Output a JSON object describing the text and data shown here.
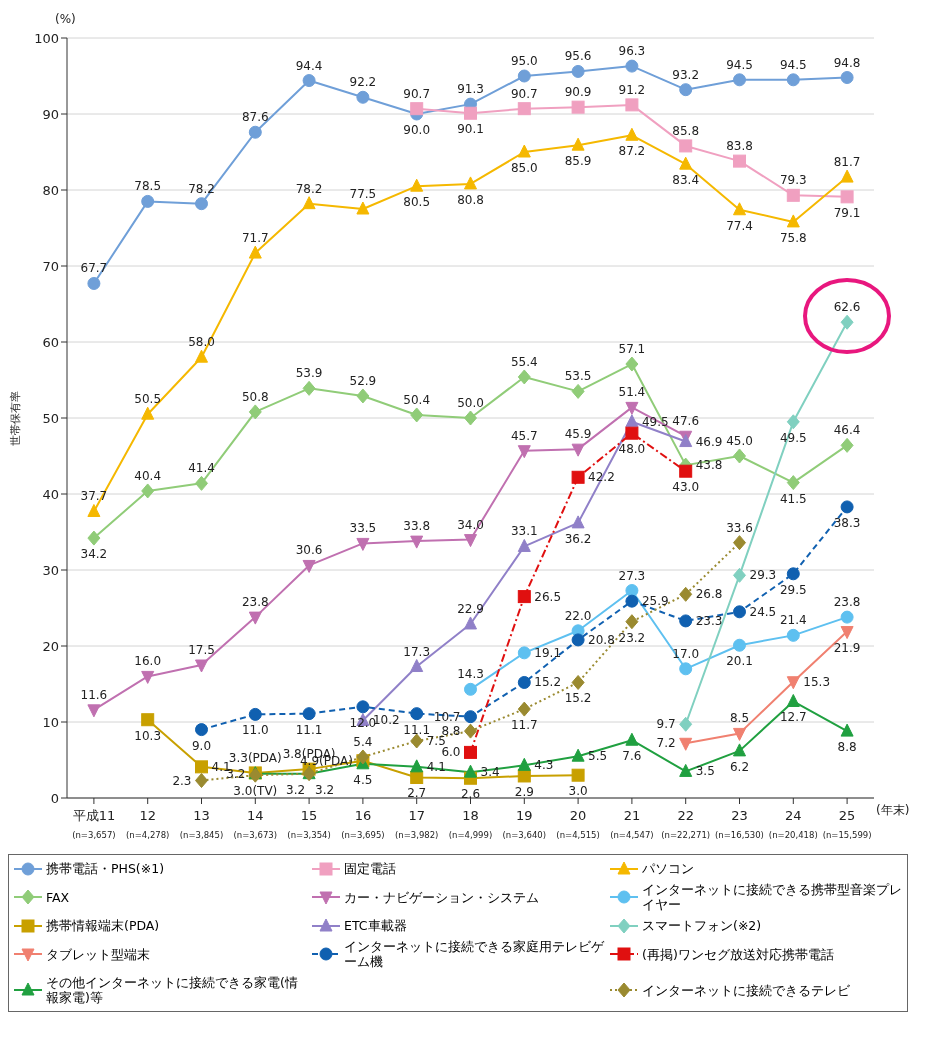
{
  "chart_data": {
    "type": "line",
    "ylabel": "世帯保有率",
    "xlabel": "(年末)",
    "annotations": [
      "(%)"
    ],
    "categories": [
      "平成11\n(n=3,657)",
      "12\n(n=4,278)",
      "13\n(n=3,845)",
      "14\n(n=3,673)",
      "15\n(n=3,354)",
      "16\n(n=3,695)",
      "17\n(n=3,982)",
      "18\n(n=4,999)",
      "19\n(n=3,640)",
      "20\n(n=4,515)",
      "21\n(n=4,547)",
      "22\n(n=22,271)",
      "23\n(n=16,530)",
      "24\n(n=20,418)",
      "25\n(n=15,599)"
    ],
    "ylim": [
      0,
      100
    ],
    "yticks": [
      0,
      10,
      20,
      30,
      40,
      50,
      60,
      70,
      80,
      90,
      100
    ],
    "grid": "y",
    "legend": "bottom",
    "series": [
      {
        "name": "携帯電話・PHS(※1)",
        "color": "#6f9fd8",
        "marker": "circle",
        "line_style": "solid",
        "values": [
          67.7,
          78.5,
          78.2,
          87.6,
          94.4,
          92.2,
          90.0,
          91.3,
          95.0,
          95.6,
          96.3,
          93.2,
          94.5,
          94.5,
          94.8
        ],
        "value_labels": [
          "67.7",
          "78.5",
          "78.2",
          "87.6",
          "94.4",
          "92.2",
          "90.0",
          "91.3",
          "95.0",
          "95.6",
          "96.3",
          "93.2",
          "94.5",
          "94.5",
          "94.8"
        ]
      },
      {
        "name": "固定電話",
        "color": "#f0a0c0",
        "marker": "square",
        "line_style": "solid",
        "values": [
          null,
          null,
          null,
          null,
          null,
          null,
          90.7,
          90.1,
          90.7,
          90.9,
          91.2,
          85.8,
          83.8,
          79.3,
          79.1
        ],
        "value_labels": [
          null,
          null,
          null,
          null,
          null,
          null,
          "90.7",
          "90.1",
          "90.7",
          "90.9",
          "91.2",
          "85.8",
          "83.8",
          "79.3",
          "79.1"
        ]
      },
      {
        "name": "パソコン",
        "color": "#f5b800",
        "marker": "triangle",
        "line_style": "solid",
        "values": [
          37.7,
          50.5,
          58.0,
          71.7,
          78.2,
          77.5,
          80.5,
          80.8,
          85.0,
          85.9,
          87.2,
          83.4,
          77.4,
          75.8,
          81.7
        ],
        "value_labels": [
          "37.7",
          "50.5",
          "58.0",
          "71.7",
          "78.2",
          "77.5",
          "80.5",
          "80.8",
          "85.0",
          "85.9",
          "87.2",
          "83.4",
          "77.4",
          "75.8",
          "81.7"
        ]
      },
      {
        "name": "FAX",
        "color": "#90cc78",
        "marker": "diamond",
        "line_style": "solid",
        "values": [
          34.2,
          40.4,
          41.4,
          50.8,
          53.9,
          52.9,
          50.4,
          50.0,
          55.4,
          53.5,
          57.1,
          43.8,
          45.0,
          41.5,
          46.4
        ],
        "value_labels": [
          "34.2",
          "40.4",
          "41.4",
          "50.8",
          "53.9",
          "52.9",
          "50.4",
          "50.0",
          "55.4",
          "53.5",
          "57.1",
          "43.8",
          "45.0",
          "41.5",
          "46.4"
        ]
      },
      {
        "name": "カー・ナビゲーション・システム",
        "color": "#c070b0",
        "marker": "triangle-down",
        "line_style": "solid",
        "values": [
          11.6,
          16.0,
          17.5,
          23.8,
          30.6,
          33.5,
          33.8,
          34.0,
          45.7,
          45.9,
          51.4,
          47.6,
          null,
          null,
          null
        ],
        "value_labels": [
          "11.6",
          "16.0",
          "17.5",
          "23.8",
          "30.6",
          "33.5",
          "33.8",
          "34.0",
          "45.7",
          "45.9",
          "51.4",
          "47.6",
          null,
          null,
          null
        ]
      },
      {
        "name": "インターネットに接続できる携帯型音楽プレイヤー",
        "color": "#5ec0f0",
        "marker": "circle",
        "line_style": "solid",
        "values": [
          null,
          null,
          null,
          null,
          null,
          null,
          null,
          14.3,
          19.1,
          22.0,
          27.3,
          17.0,
          20.1,
          21.4,
          23.8
        ],
        "value_labels": [
          null,
          null,
          null,
          null,
          null,
          null,
          null,
          "14.3",
          "19.1",
          "22.0",
          "27.3",
          "17.0",
          "20.1",
          "21.4",
          "23.8"
        ]
      },
      {
        "name": "携帯情報端末(PDA)",
        "color": "#c8a000",
        "marker": "square",
        "line_style": "solid",
        "values": [
          null,
          10.3,
          4.1,
          3.3,
          3.8,
          4.9,
          2.7,
          2.6,
          2.9,
          3.0,
          null,
          null,
          null,
          null,
          null
        ],
        "value_labels": [
          null,
          "10.3",
          "4.1",
          "3.3(PDA)",
          "3.8(PDA)",
          "4.9(PDA)",
          "2.7",
          "2.6",
          "2.9",
          "3.0",
          null,
          null,
          null,
          null,
          null
        ]
      },
      {
        "name": "ETC車載器",
        "color": "#9080c8",
        "marker": "triangle",
        "line_style": "solid",
        "values": [
          null,
          null,
          null,
          null,
          null,
          10.2,
          17.3,
          22.9,
          33.1,
          36.2,
          49.5,
          46.9,
          null,
          null,
          null
        ],
        "value_labels": [
          null,
          null,
          null,
          null,
          null,
          "10.2",
          "17.3",
          "22.9",
          "33.1",
          "36.2",
          "49.5",
          "46.9",
          null,
          null,
          null
        ]
      },
      {
        "name": "スマートフォン(※2)",
        "color": "#80d0c0",
        "marker": "diamond",
        "line_style": "solid",
        "values": [
          null,
          null,
          null,
          null,
          null,
          null,
          null,
          null,
          null,
          null,
          null,
          9.7,
          29.3,
          49.5,
          62.6
        ],
        "value_labels": [
          null,
          null,
          null,
          null,
          null,
          null,
          null,
          null,
          null,
          null,
          null,
          "9.7",
          "29.3",
          "49.5",
          "62.6"
        ]
      },
      {
        "name": "タブレット型端末",
        "color": "#f08070",
        "marker": "triangle-down",
        "line_style": "solid",
        "values": [
          null,
          null,
          null,
          null,
          null,
          null,
          null,
          null,
          null,
          null,
          null,
          7.2,
          8.5,
          15.3,
          21.9
        ],
        "value_labels": [
          null,
          null,
          null,
          null,
          null,
          null,
          null,
          null,
          null,
          null,
          null,
          "7.2",
          "8.5",
          "15.3",
          "21.9"
        ]
      },
      {
        "name": "インターネットに接続できる家庭用テレビゲーム機",
        "color": "#1060b0",
        "marker": "circle",
        "line_style": "dashed",
        "values": [
          null,
          null,
          9.0,
          11.0,
          11.1,
          12.0,
          11.1,
          10.7,
          15.2,
          20.8,
          25.9,
          23.3,
          24.5,
          29.5,
          38.3
        ],
        "value_labels": [
          null,
          null,
          "9.0",
          "11.0",
          "11.1",
          "12.0",
          "11.1",
          "10.7",
          "15.2",
          "20.8",
          "25.9",
          "23.3",
          "24.5",
          "29.5",
          "38.3"
        ]
      },
      {
        "name": "(再掲)ワンセグ放送対応携帯電話",
        "color": "#e01010",
        "marker": "square",
        "line_style": "dashdot",
        "values": [
          null,
          null,
          null,
          null,
          null,
          null,
          null,
          6.0,
          26.5,
          42.2,
          48.0,
          43.0,
          null,
          null,
          null
        ],
        "value_labels": [
          null,
          null,
          null,
          null,
          null,
          null,
          null,
          "6.0",
          "26.5",
          "42.2",
          "48.0",
          "43.0",
          null,
          null,
          null
        ]
      },
      {
        "name": "その他インターネットに接続できる家電(情報家電)等",
        "color": "#20a040",
        "marker": "triangle",
        "line_style": "solid",
        "values": [
          null,
          null,
          null,
          3.2,
          3.2,
          4.5,
          4.1,
          3.4,
          4.3,
          5.5,
          7.6,
          3.5,
          6.2,
          12.7,
          8.8
        ],
        "value_labels": [
          null,
          null,
          null,
          "3.2",
          "3.2",
          "4.5",
          "4.1",
          "3.4",
          "4.3",
          "5.5",
          "7.6",
          "3.5",
          "6.2",
          "12.7",
          "8.8"
        ]
      },
      {
        "name": "インターネットに接続できるテレビ",
        "color": "#9a8a30",
        "marker": "diamond",
        "line_style": "dotted",
        "values": [
          null,
          null,
          2.3,
          3.0,
          3.2,
          5.4,
          7.5,
          8.8,
          11.7,
          15.2,
          23.2,
          26.8,
          33.6,
          null,
          null
        ],
        "value_labels": [
          null,
          null,
          "2.3",
          "3.0(TV)",
          "3.2",
          "5.4",
          "7.5",
          "8.8",
          "11.7",
          "15.2",
          "23.2",
          "26.8",
          "33.6",
          null,
          null
        ]
      }
    ]
  }
}
